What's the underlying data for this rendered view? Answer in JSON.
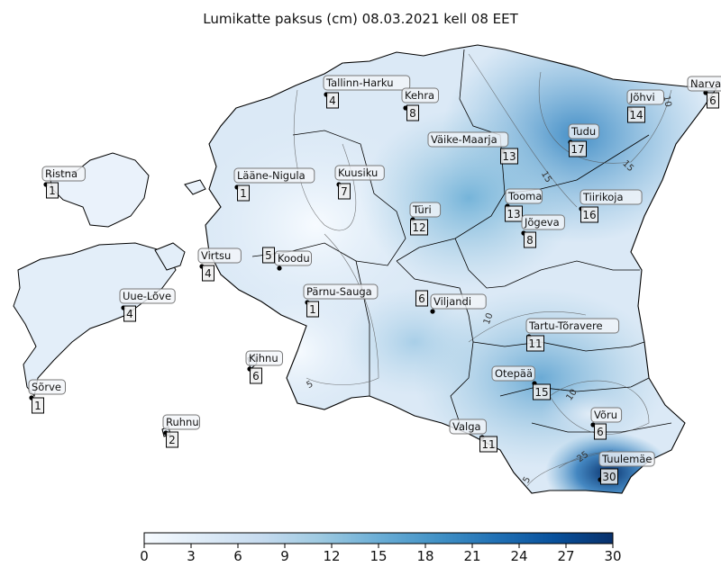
{
  "title": "Lumikatte paksus (cm) 08.03.2021 kell 08 EET",
  "colorbar": {
    "min": 0,
    "max": 30,
    "ticks": [
      "0",
      "3",
      "6",
      "9",
      "12",
      "15",
      "18",
      "21",
      "24",
      "27",
      "30"
    ],
    "colors": [
      "#f7fbff",
      "#deebf7",
      "#c6dbef",
      "#9ecae1",
      "#6baed6",
      "#4292c6",
      "#2171b5",
      "#08519c",
      "#08306b"
    ]
  },
  "contour_labels": [
    "5",
    "10",
    "15",
    "25"
  ],
  "stations": [
    {
      "name": "Tallinn-Harku",
      "value": "4"
    },
    {
      "name": "Kehra",
      "value": "8"
    },
    {
      "name": "Narva",
      "value": "6"
    },
    {
      "name": "Jõhvi",
      "value": "14"
    },
    {
      "name": "Tudu",
      "value": "17"
    },
    {
      "name": "Väike-Maarja",
      "value": "13"
    },
    {
      "name": "Ristna",
      "value": "1"
    },
    {
      "name": "Lääne-Nigula",
      "value": "1"
    },
    {
      "name": "Kuusiku",
      "value": "7"
    },
    {
      "name": "Tooma",
      "value": "13"
    },
    {
      "name": "Tiirikoja",
      "value": "16"
    },
    {
      "name": "Türi",
      "value": "12"
    },
    {
      "name": "Jõgeva",
      "value": "8"
    },
    {
      "name": "Virtsu",
      "value": "4"
    },
    {
      "name": "Koodu",
      "value": "5"
    },
    {
      "name": "Pärnu-Sauga",
      "value": "1"
    },
    {
      "name": "Viljandi",
      "value": "6"
    },
    {
      "name": "Uue-Lõve",
      "value": "4"
    },
    {
      "name": "Tartu-Tõravere",
      "value": "11"
    },
    {
      "name": "Kihnu",
      "value": "6"
    },
    {
      "name": "Sõrve",
      "value": "1"
    },
    {
      "name": "Otepää",
      "value": "15"
    },
    {
      "name": "Võru",
      "value": "6"
    },
    {
      "name": "Valga",
      "value": "11"
    },
    {
      "name": "Ruhnu",
      "value": "2"
    },
    {
      "name": "Tuulemäe",
      "value": "30"
    }
  ]
}
